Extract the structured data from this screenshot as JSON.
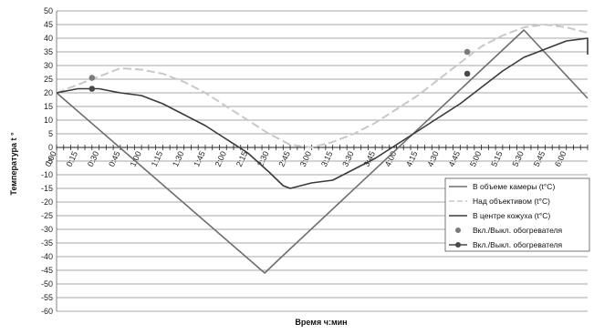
{
  "chart_data": {
    "type": "line",
    "title": "",
    "xlabel": "Время ч:мин",
    "ylabel": "Температура t °",
    "ylim": [
      -60,
      50
    ],
    "y_ticks": [
      50,
      45,
      40,
      35,
      30,
      25,
      20,
      15,
      10,
      5,
      0,
      -5,
      -10,
      -15,
      -20,
      -25,
      -30,
      -35,
      -40,
      -45,
      -50,
      -55,
      -60
    ],
    "x_ticks": [
      "0:00",
      "0:15",
      "0:30",
      "0:45",
      "1:00",
      "1:15",
      "1:30",
      "1:45",
      "2:00",
      "2:15",
      "2:30",
      "2:45",
      "3:00",
      "3:15",
      "3:30",
      "3:45",
      "4:00",
      "4:15",
      "4:30",
      "4:45",
      "5:00",
      "5:15",
      "5:30",
      "5:45",
      "6:00"
    ],
    "x_range_minutes": [
      0,
      375
    ],
    "grid": "horizontal",
    "legend_position": "right",
    "series": [
      {
        "name": "В объеме камеры (t°C)",
        "color": "#6e6e6e",
        "points": [
          [
            0,
            20
          ],
          [
            147,
            -46
          ],
          [
            157,
            -41
          ],
          [
            330,
            43
          ],
          [
            375,
            18
          ]
        ]
      },
      {
        "name": "Над объективом (t°C)",
        "color": "#c8c8c8",
        "dashed": true,
        "points": [
          [
            0,
            20
          ],
          [
            15,
            23
          ],
          [
            30,
            26
          ],
          [
            45,
            29
          ],
          [
            60,
            28.5
          ],
          [
            75,
            27
          ],
          [
            90,
            24
          ],
          [
            105,
            20
          ],
          [
            120,
            15
          ],
          [
            135,
            10
          ],
          [
            150,
            5
          ],
          [
            165,
            1
          ],
          [
            180,
            0
          ],
          [
            195,
            2
          ],
          [
            210,
            5
          ],
          [
            225,
            9
          ],
          [
            240,
            14
          ],
          [
            255,
            19
          ],
          [
            270,
            25
          ],
          [
            285,
            31
          ],
          [
            300,
            37
          ],
          [
            315,
            41
          ],
          [
            330,
            44
          ],
          [
            345,
            45
          ],
          [
            360,
            44
          ],
          [
            375,
            42
          ]
        ]
      },
      {
        "name": "В центре кожуха (t°C)",
        "color": "#3a3a3a",
        "points": [
          [
            0,
            20
          ],
          [
            15,
            21.5
          ],
          [
            30,
            21.5
          ],
          [
            45,
            20
          ],
          [
            60,
            19
          ],
          [
            75,
            16
          ],
          [
            90,
            12
          ],
          [
            105,
            8
          ],
          [
            120,
            3
          ],
          [
            135,
            -2
          ],
          [
            150,
            -9
          ],
          [
            160,
            -14
          ],
          [
            165,
            -15
          ],
          [
            180,
            -13
          ],
          [
            195,
            -12
          ],
          [
            210,
            -8
          ],
          [
            225,
            -4
          ],
          [
            240,
            1
          ],
          [
            255,
            6
          ],
          [
            270,
            11
          ],
          [
            285,
            16
          ],
          [
            300,
            22
          ],
          [
            315,
            28
          ],
          [
            330,
            33
          ],
          [
            345,
            36
          ],
          [
            360,
            39
          ],
          [
            375,
            40
          ],
          [
            390,
            37
          ],
          [
            400,
            34
          ]
        ]
      }
    ],
    "markers": [
      {
        "name": "Вкл./Выкл. обогревателя",
        "color": "#7a7a7a",
        "points": [
          [
            25,
            25.5
          ],
          [
            290,
            35
          ]
        ]
      },
      {
        "name": "Вкл./Выкл. обогревателя",
        "color": "#4a4a4a",
        "points": [
          [
            25,
            21.5
          ],
          [
            290,
            27
          ]
        ]
      }
    ]
  }
}
